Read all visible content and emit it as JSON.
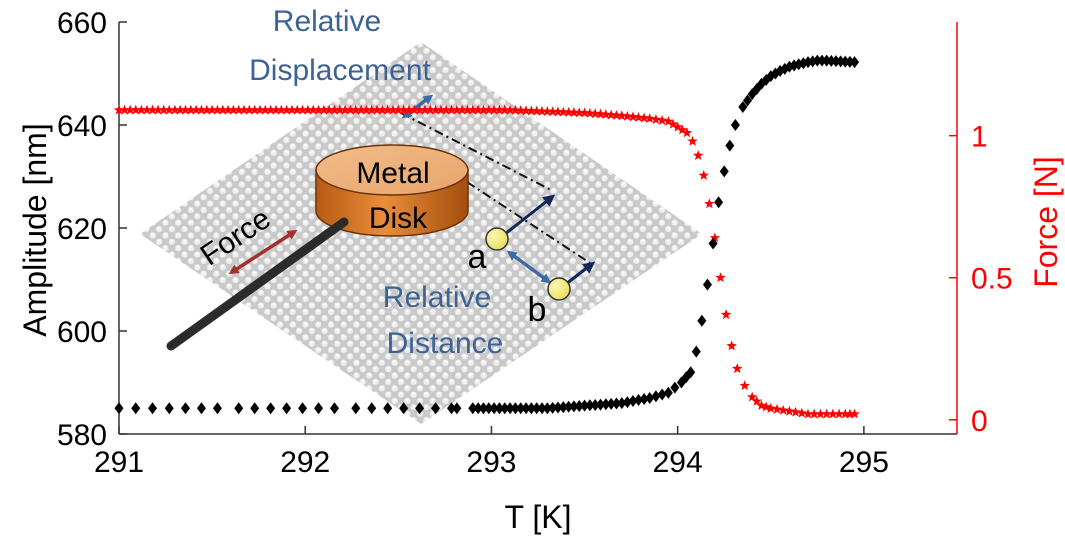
{
  "chart_data": {
    "type": "scatter",
    "xlabel": "T [K]",
    "ylabel": "Amplitude [nm]",
    "y2label": "Force [N]",
    "xlim": [
      291,
      295.5
    ],
    "ylim": [
      580,
      660
    ],
    "y2lim": [
      -0.05,
      1.4
    ],
    "xticks": [
      "291",
      "292",
      "293",
      "294",
      "295"
    ],
    "yticks": [
      "580",
      "600",
      "620",
      "640",
      "660"
    ],
    "y2ticks": [
      "0",
      "0.5",
      "1"
    ],
    "grid": false,
    "series": [
      {
        "axis": "left",
        "marker": "diamond",
        "color": "#000000",
        "x": [
          291.0,
          291.15,
          291.3,
          291.5,
          291.7,
          291.9,
          292.1,
          292.3,
          292.5,
          292.7,
          292.9,
          293.1,
          293.3,
          293.5,
          293.7,
          293.85,
          293.95,
          294.02,
          294.07,
          294.1,
          294.13,
          294.16,
          294.19,
          294.22,
          294.25,
          294.28,
          294.31,
          294.35,
          294.4,
          294.45,
          294.5,
          294.55,
          294.6,
          294.65,
          294.7,
          294.75,
          294.8,
          294.85,
          294.9,
          294.95
        ],
        "y": [
          585,
          585,
          585,
          585,
          585,
          585,
          585,
          585,
          585,
          585,
          585,
          585,
          585,
          585.5,
          586,
          587,
          588,
          590,
          592,
          596,
          602,
          609,
          617,
          625,
          631,
          636,
          640,
          643.5,
          646,
          648,
          649.5,
          650.5,
          651.3,
          651.8,
          652.2,
          652.5,
          652.5,
          652.4,
          652.3,
          652.2
        ]
      },
      {
        "axis": "right",
        "marker": "star",
        "color": "#ff0000",
        "x": [
          291.0,
          291.15,
          291.3,
          291.5,
          291.7,
          291.9,
          292.1,
          292.3,
          292.5,
          292.7,
          292.9,
          293.1,
          293.3,
          293.5,
          293.7,
          293.85,
          293.95,
          294.0,
          294.05,
          294.08,
          294.11,
          294.14,
          294.17,
          294.2,
          294.23,
          294.26,
          294.29,
          294.32,
          294.36,
          294.4,
          294.45,
          294.5,
          294.6,
          294.7,
          294.8,
          294.9,
          294.95
        ],
        "y": [
          1.09,
          1.09,
          1.09,
          1.09,
          1.09,
          1.09,
          1.09,
          1.09,
          1.09,
          1.09,
          1.09,
          1.09,
          1.085,
          1.08,
          1.07,
          1.06,
          1.05,
          1.03,
          1.01,
          0.98,
          0.93,
          0.86,
          0.76,
          0.64,
          0.5,
          0.37,
          0.26,
          0.18,
          0.12,
          0.08,
          0.05,
          0.04,
          0.03,
          0.02,
          0.02,
          0.02,
          0.02
        ]
      }
    ],
    "annotations": {
      "force": "Force",
      "metal_line1": "Metal",
      "metal_line2": "Disk",
      "point_a": "a",
      "point_b": "b",
      "rel_disp_line1": "Relative",
      "rel_disp_line2": "Displacement",
      "rel_dist_line1": "Relative",
      "rel_dist_line2": "Distance"
    }
  }
}
